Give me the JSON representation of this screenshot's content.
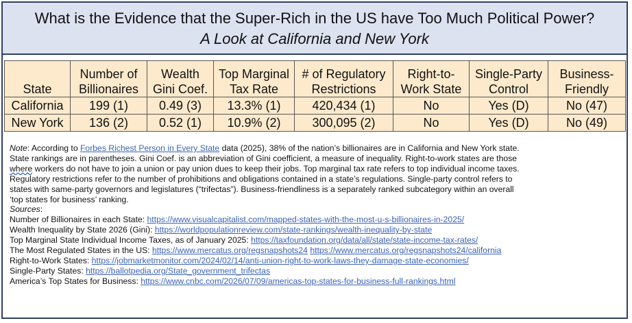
{
  "title": {
    "line1": "What is the Evidence that the Super-Rich in the US have Too Much Political Power?",
    "line2": "A Look at California and New York"
  },
  "table": {
    "headers": [
      [
        "",
        "State"
      ],
      [
        "Number of",
        "Billionaires"
      ],
      [
        "Wealth",
        "Gini Coef."
      ],
      [
        "Top Marginal",
        "Tax Rate"
      ],
      [
        "# of Regulatory",
        "Restrictions"
      ],
      [
        "Right-to-",
        "Work State"
      ],
      [
        "Single-Party",
        "Control"
      ],
      [
        "Business-",
        "Friendly"
      ]
    ],
    "rows": [
      [
        "California",
        "199 (1)",
        "0.49 (3)",
        "13.3% (1)",
        "420,434 (1)",
        "No",
        "Yes (D)",
        "No (47)"
      ],
      [
        "New York",
        "136 (2)",
        "0.52 (1)",
        "10.9% (2)",
        "300,095 (2)",
        "No",
        "Yes (D)",
        "No (49)"
      ]
    ]
  },
  "notes": {
    "note_label": "Note",
    "note_part1": ": According to ",
    "note_link": "Forbes Richest Person in Every State",
    "note_part2": " data (2025), 38% of the nation’s billionaires are in California and New York state.",
    "line2": "State rankings are in parentheses. Gini Coef. is an abbreviation of Gini coefficient, a measure of inequality. Right-to-work states are those",
    "line3_wavy": "where",
    "line3_rest": " workers do not have to join a union or pay union dues to keep their jobs. Top marginal tax rate refers to top individual income taxes.",
    "line4": "Regulatory restrictions  refer to the number of prohibitions and obligations contained in a state’s regulations. Single-party control refers to",
    "line5": "states with same-party governors  and legislatures (“trifectas”). Business-friendliness is a separately ranked subcategory within an overall",
    "line6": "‘top states for business’ ranking.",
    "sources_label": "Sources",
    "sources": [
      {
        "label": "Number of Billionaires in each State: ",
        "links": [
          "https://www.visualcapitalist.com/mapped-states-with-the-most-u-s-billionaires-in-2025/"
        ]
      },
      {
        "label": "Wealth Inequality by State 2026 (Gini):  ",
        "links": [
          "https://worldpopulationreview.com/state-rankings/wealth-inequality-by-state"
        ]
      },
      {
        "label": "Top Marginal State Individual Income Taxes, as of January 2025: ",
        "links": [
          "https://taxfoundation.org/data/all/state/state-income-tax-rates/"
        ]
      },
      {
        "label": "The Most Regulated States in the US:  ",
        "links": [
          "https://www.mercatus.org/regsnapshots24",
          "https://www.mercatus.org/regsnapshots24/california"
        ]
      },
      {
        "label": "Right-to-Work States: ",
        "links": [
          "https://jobmarketmonitor.com/2024/02/14/anti-union-right-to-work-laws-they-damage-state-economies/"
        ]
      },
      {
        "label": "Single-Party States: ",
        "links": [
          "https://ballotpedia.org/State_government_trifectas"
        ]
      },
      {
        "label": "America’s Top States for Business:  ",
        "links": [
          "https://www.cnbc.com/2026/07/09/americas-top-states-for-business-full-rankings.html"
        ]
      }
    ]
  },
  "colors": {
    "title_bg": "#dde2f1",
    "table_bg": "#fdeacd",
    "border": "#2f3f63",
    "link": "#3a62b6"
  }
}
